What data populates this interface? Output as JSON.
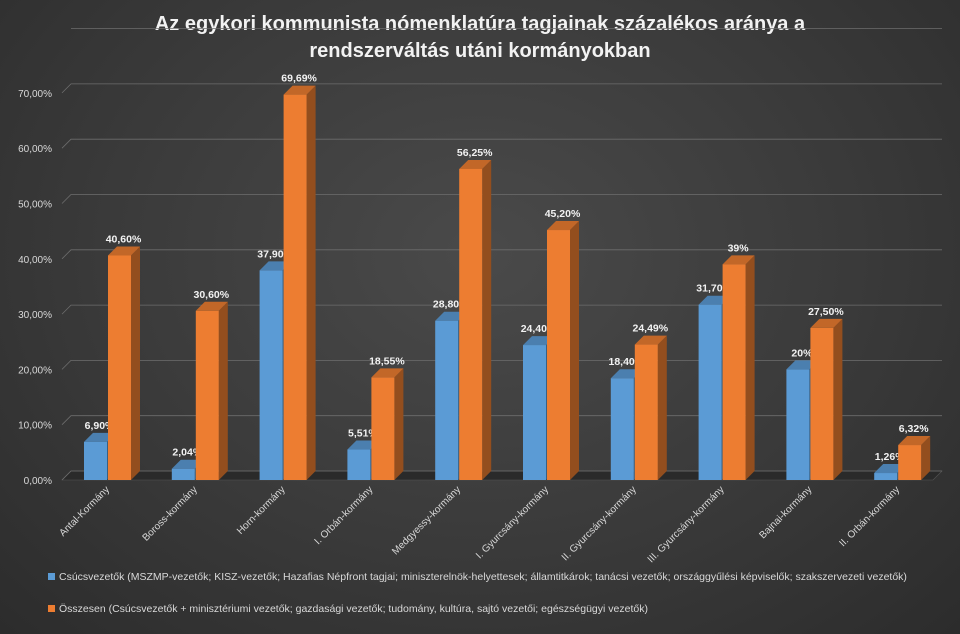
{
  "chart_data": {
    "type": "bar",
    "title": "Az egykori kommunista nómenklatúra tagjainak százalékos aránya a rendszerváltás utáni kormányokban",
    "title_lines": [
      "Az egykori kommunista nómenklatúra tagjainak százalékos aránya a",
      "rendszerváltás utáni kormányokban"
    ],
    "categories": [
      "Antal-Kormány",
      "Boross-kormány",
      "Horn-kormány",
      "I. Orbán-kormány",
      "Medgyessy-kormány",
      "I. Gyurcsány-kormány",
      "II. Gyurcsány-kormány",
      "III. Gyurcsány-kormány",
      "Bajnai-kormány",
      "II. Orbán-kormány"
    ],
    "series": [
      {
        "name": "Csúcsvezetők (MSZMP-vezetők; KISZ-vezetők; Hazafias Népfront tagjai; miniszterelnök-helyettesek; államtitkárok; tanácsi vezetők; országgyűlési képviselők; szakszervezeti vezetők)",
        "color": "#5b9bd5",
        "values": [
          6.9,
          2.04,
          37.9,
          5.51,
          28.8,
          24.4,
          18.4,
          31.7,
          20,
          1.26
        ],
        "labels": [
          "6,90%",
          "2,04%",
          "37,90%",
          "5,51%",
          "28,80%",
          "24,40%",
          "18,40%",
          "31,70%",
          "20%",
          "1,26%"
        ]
      },
      {
        "name": "Összesen (Csúcsvezetők + minisztériumi vezetők; gazdasági vezetők; tudomány, kultúra, sajtó vezetői; egészségügyi vezetők)",
        "color": "#ed7d31",
        "values": [
          40.6,
          30.6,
          69.69,
          18.55,
          56.25,
          45.2,
          24.49,
          39,
          27.5,
          6.32
        ],
        "labels": [
          "40,60%",
          "30,60%",
          "69,69%",
          "18,55%",
          "56,25%",
          "45,20%",
          "24,49%",
          "39%",
          "27,50%",
          "6,32%"
        ]
      }
    ],
    "y_ticks": [
      "0,00%",
      "10,00%",
      "20,00%",
      "30,00%",
      "40,00%",
      "50,00%",
      "60,00%",
      "70,00%"
    ],
    "xlabel": "",
    "ylabel": "",
    "ylim": [
      0,
      80
    ],
    "grid": true,
    "legend_position": "bottom",
    "style": "3d-clustered-column"
  }
}
